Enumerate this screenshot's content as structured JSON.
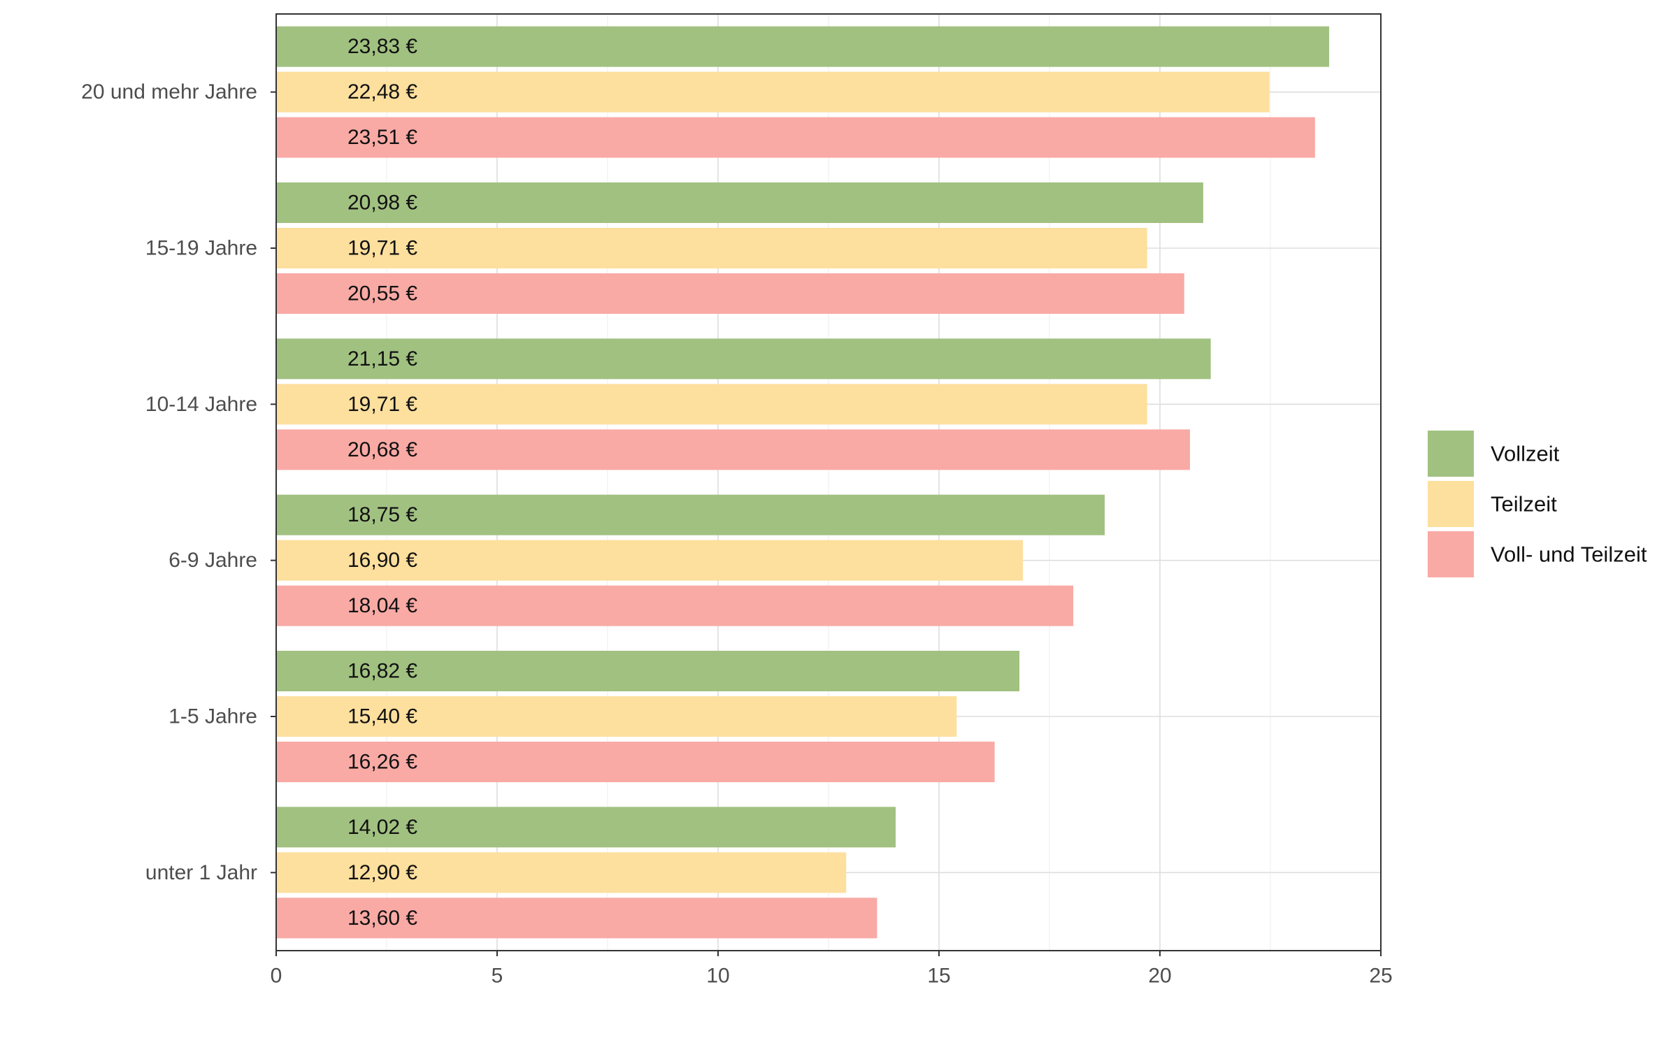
{
  "chart_data": {
    "type": "bar",
    "orientation": "horizontal",
    "categories": [
      "20 und mehr Jahre",
      "15-19 Jahre",
      "10-14 Jahre",
      "6-9 Jahre",
      "1-5 Jahre",
      "unter 1 Jahr"
    ],
    "series": [
      {
        "name": "Vollzeit",
        "color": "#a1c181",
        "values": [
          23.83,
          20.98,
          21.15,
          18.75,
          16.82,
          14.02
        ],
        "labels": [
          "23,83 €",
          "20,98 €",
          "21,15 €",
          "18,75 €",
          "16,82 €",
          "14,02 €"
        ]
      },
      {
        "name": "Teilzeit",
        "color": "#fddf9e",
        "values": [
          22.48,
          19.71,
          19.71,
          16.9,
          15.4,
          12.9
        ],
        "labels": [
          "22,48 €",
          "19,71 €",
          "19,71 €",
          "16,90 €",
          "15,40 €",
          "12,90 €"
        ]
      },
      {
        "name": "Voll- und Teilzeit",
        "color": "#f9aaa5",
        "values": [
          23.51,
          20.55,
          20.68,
          18.04,
          16.26,
          13.6
        ],
        "labels": [
          "23,51 €",
          "20,55 €",
          "20,68 €",
          "18,04 €",
          "16,26 €",
          "13,60 €"
        ]
      }
    ],
    "xlim": [
      0,
      25
    ],
    "xticks": [
      "0",
      "5",
      "10",
      "15",
      "20",
      "25"
    ],
    "xlabel": "",
    "ylabel": "",
    "title": "",
    "grid": true,
    "legend_position": "right"
  }
}
